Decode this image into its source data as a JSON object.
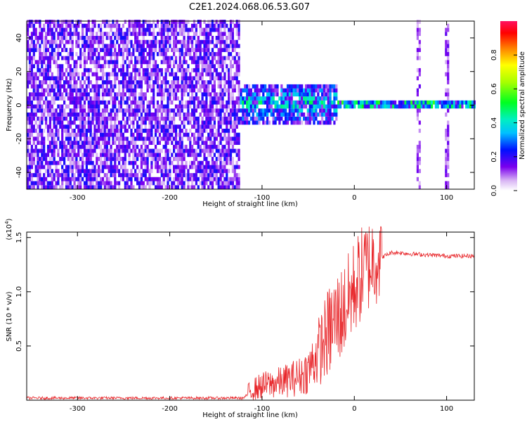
{
  "figure": {
    "title": "C2E1.2024.068.06.53.G07"
  },
  "chart_data": [
    {
      "type": "heatmap",
      "description_role": "spectrogram",
      "xlabel": "Height of straight line (km)",
      "ylabel": "Frequency (Hz)",
      "xlim": [
        -355,
        130
      ],
      "ylim": [
        -50,
        50
      ],
      "x_ticks": [
        -300,
        -200,
        -100,
        0,
        100
      ],
      "y_ticks": [
        40,
        20,
        0,
        -20,
        -40
      ],
      "colorbar": {
        "label": "Normalized spectral amplitude",
        "range": [
          0.0,
          1.0
        ],
        "ticks": [
          "0.0",
          "0.2",
          "0.4",
          "0.6",
          "0.8"
        ],
        "tick_values": [
          0.0,
          0.2,
          0.4,
          0.6,
          0.8
        ]
      },
      "regions": [
        {
          "x_range": [
            -355,
            -125
          ],
          "freq_range": [
            -50,
            50
          ],
          "amplitude": 0.2,
          "pattern": "broadband noise"
        },
        {
          "x_range": [
            -125,
            -20
          ],
          "freq_range": [
            -12,
            10
          ],
          "amplitude": 0.45,
          "pattern": "narrowing band near 0 Hz"
        },
        {
          "x_range": [
            -20,
            130
          ],
          "freq_range": [
            -1,
            1
          ],
          "amplitude": 0.5,
          "pattern": "carrier line at 0 Hz"
        },
        {
          "x_range": [
            66,
            70
          ],
          "freq_range": [
            -50,
            50
          ],
          "amplitude": 0.15,
          "pattern": "vertical noise band"
        },
        {
          "x_range": [
            97,
            102
          ],
          "freq_range": [
            -50,
            50
          ],
          "amplitude": 0.15,
          "pattern": "vertical noise band"
        }
      ],
      "grid": false
    },
    {
      "type": "line",
      "xlabel": "Height of straight line (km)",
      "ylabel": "SNR (10 * v/v)",
      "y_multiplier": "(x10^4)",
      "y_multiplier_base": "(x10",
      "y_multiplier_exp": "4",
      "y_multiplier_close": ")",
      "xlim": [
        -355,
        130
      ],
      "ylim": [
        0,
        1.55
      ],
      "x_ticks": [
        -300,
        -200,
        -100,
        0,
        100
      ],
      "y_ticks": [
        "0.5",
        "1.0",
        "1.5"
      ],
      "y_tick_values": [
        0.5,
        1.0,
        1.5
      ],
      "series": [
        {
          "color": "#e8262a",
          "x": [
            -355,
            -300,
            -250,
            -200,
            -150,
            -120,
            -112,
            -100,
            -80,
            -60,
            -50,
            -40,
            -30,
            -20,
            -10,
            0,
            10,
            20,
            30,
            40,
            50,
            60,
            80,
            100,
            130
          ],
          "y": [
            0.02,
            0.02,
            0.02,
            0.02,
            0.02,
            0.02,
            0.08,
            0.12,
            0.15,
            0.2,
            0.25,
            0.4,
            0.55,
            0.7,
            0.8,
            1.0,
            1.15,
            1.25,
            1.32,
            1.36,
            1.36,
            1.35,
            1.34,
            1.33,
            1.33
          ]
        }
      ],
      "grid": false
    }
  ]
}
